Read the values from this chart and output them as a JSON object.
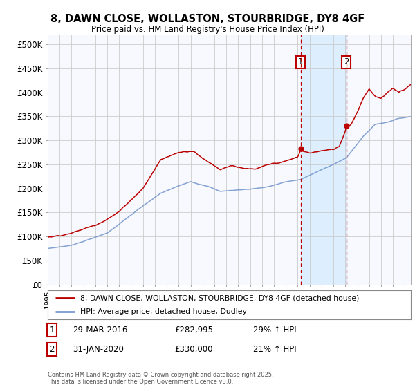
{
  "title": "8, DAWN CLOSE, WOLLASTON, STOURBRIDGE, DY8 4GF",
  "subtitle": "Price paid vs. HM Land Registry's House Price Index (HPI)",
  "bg_color": "#ffffff",
  "plot_bg_color": "#f8f8ff",
  "grid_color": "#cccccc",
  "red_line_color": "#bb0000",
  "blue_line_color": "#7799cc",
  "shade_color": "#ddeeff",
  "sale1_x": 2016.24,
  "sale2_x": 2020.08,
  "sale1_price": 282995,
  "sale2_price": 330000,
  "sale1_label": "1",
  "sale2_label": "2",
  "ylim": [
    0,
    520000
  ],
  "yticks": [
    0,
    50000,
    100000,
    150000,
    200000,
    250000,
    300000,
    350000,
    400000,
    450000,
    500000
  ],
  "ytick_labels": [
    "£0",
    "£50K",
    "£100K",
    "£150K",
    "£200K",
    "£250K",
    "£300K",
    "£350K",
    "£400K",
    "£450K",
    "£500K"
  ],
  "xlim": [
    1995,
    2025.5
  ],
  "legend_entry1": "8, DAWN CLOSE, WOLLASTON, STOURBRIDGE, DY8 4GF (detached house)",
  "legend_entry2": "HPI: Average price, detached house, Dudley",
  "annot1_date": "29-MAR-2016",
  "annot1_price": "£282,995",
  "annot1_hpi": "29% ↑ HPI",
  "annot2_date": "31-JAN-2020",
  "annot2_price": "£330,000",
  "annot2_hpi": "21% ↑ HPI",
  "footer": "Contains HM Land Registry data © Crown copyright and database right 2025.\nThis data is licensed under the Open Government Licence v3.0."
}
